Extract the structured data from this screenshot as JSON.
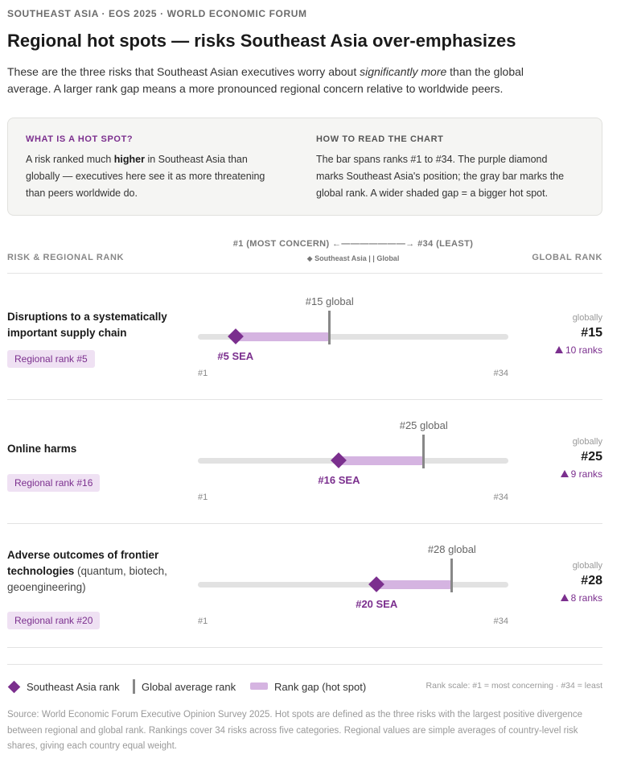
{
  "eyebrow": "SOUTHEAST ASIA · EOS 2025 · WORLD ECONOMIC FORUM",
  "title": "Regional hot spots — risks Southeast Asia over-emphasizes",
  "lede": {
    "part1": "These are the three risks that Southeast Asian executives worry about ",
    "emph": "significantly more",
    "part2": " than the global average. A larger rank gap means a more pronounced regional concern relative to worldwide peers."
  },
  "info": {
    "left_head": "WHAT IS A HOT SPOT?",
    "left_text1": "A risk ranked much ",
    "left_bold": "higher",
    "left_text2": " in Southeast Asia than globally — executives here see it as more threatening than peers worldwide do.",
    "right_head": "HOW TO READ THE CHART",
    "right_text": "The bar spans ranks #1 to #34. The purple diamond marks Southeast Asia's position; the gray bar marks the global rank. A wider shaded gap = a bigger hot spot."
  },
  "header": {
    "left": "RISK & REGIONAL RANK",
    "axis": "#1 (MOST CONCERN) ←———————→ #34 (LEAST)",
    "axis_sub": "◆ Southeast Asia  |  | Global",
    "right": "GLOBAL RANK"
  },
  "colors": {
    "accent": "#7b2f8e",
    "gap": "#d5b4e1",
    "global": "#888888",
    "track": "#e2e2e2"
  },
  "chart_data": {
    "type": "dot-range",
    "title": "Regional hot spots — risks Southeast Asia over-emphasizes",
    "scale": {
      "min": 1,
      "max": 34,
      "min_label": "#1",
      "max_label": "#34"
    },
    "series": [
      {
        "name": "Southeast Asia rank",
        "marker": "diamond"
      },
      {
        "name": "Global average rank",
        "marker": "line"
      }
    ],
    "rows": [
      {
        "risk": "Disruptions to a systematically important supply chain",
        "qualifier": "",
        "regional_rank": 5,
        "global_rank": 15,
        "badge": "Regional rank #5",
        "sea_label": "#5 SEA",
        "global_label": "#15 global",
        "global_value": "#15",
        "diff_label": "10 ranks"
      },
      {
        "risk": "Online harms",
        "qualifier": "",
        "regional_rank": 16,
        "global_rank": 25,
        "badge": "Regional rank #16",
        "sea_label": "#16 SEA",
        "global_label": "#25 global",
        "global_value": "#25",
        "diff_label": "9 ranks"
      },
      {
        "risk": "Adverse outcomes of frontier technologies",
        "qualifier": " (quantum, biotech, geoengineering)",
        "regional_rank": 20,
        "global_rank": 28,
        "badge": "Regional rank #20",
        "sea_label": "#20 SEA",
        "global_label": "#28 global",
        "global_value": "#28",
        "diff_label": "8 ranks"
      }
    ]
  },
  "globally_label": "globally",
  "legend": {
    "sea": "Southeast Asia rank",
    "global": "Global average rank",
    "gap": "Rank gap (hot spot)",
    "note": "Rank scale: #1 = most concerning · #34 = least"
  },
  "source": "Source: World Economic Forum Executive Opinion Survey 2025. Hot spots are defined as the three risks with the largest positive divergence between regional and global rank. Rankings cover 34 risks across five categories. Regional values are simple averages of country-level risk shares, giving each country equal weight."
}
